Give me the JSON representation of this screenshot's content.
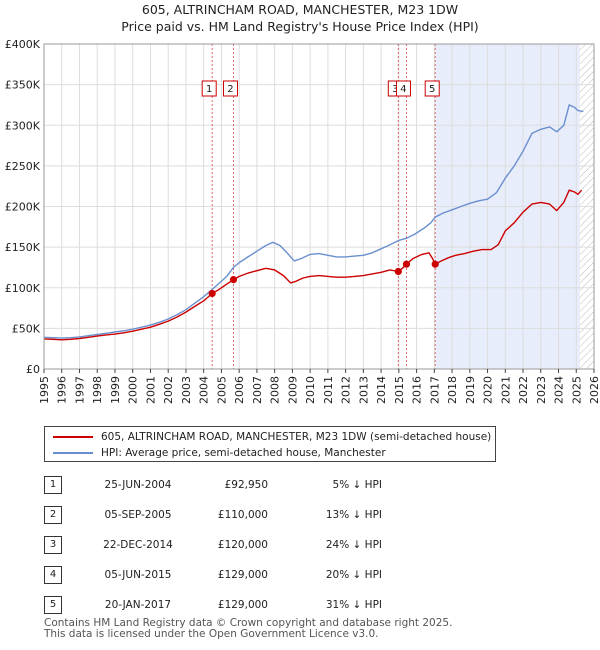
{
  "title_line1": "605, ALTRINCHAM ROAD, MANCHESTER, M23 1DW",
  "title_line2": "Price paid vs. HM Land Registry's House Price Index (HPI)",
  "chart_data": {
    "type": "line",
    "x_ticks": [
      "1995",
      "1996",
      "1997",
      "1998",
      "1999",
      "2000",
      "2001",
      "2002",
      "2003",
      "2004",
      "2005",
      "2006",
      "2007",
      "2008",
      "2009",
      "2010",
      "2011",
      "2012",
      "2013",
      "2014",
      "2015",
      "2016",
      "2017",
      "2018",
      "2019",
      "2020",
      "2021",
      "2022",
      "2023",
      "2024",
      "2025",
      "2026"
    ],
    "y_ticks": [
      "£0",
      "£50K",
      "£100K",
      "£150K",
      "£200K",
      "£250K",
      "£300K",
      "£350K",
      "£400K"
    ],
    "xlim": [
      1995,
      2026
    ],
    "ylim": [
      0,
      400000
    ],
    "series": [
      {
        "name": "605, ALTRINCHAM ROAD, MANCHESTER, M23 1DW (semi-detached house)",
        "color": "#cc0000",
        "points": [
          [
            1995.0,
            37000
          ],
          [
            1995.5,
            36500
          ],
          [
            1996.0,
            36000
          ],
          [
            1996.5,
            36500
          ],
          [
            1997.0,
            37500
          ],
          [
            1997.5,
            39000
          ],
          [
            1998.0,
            40500
          ],
          [
            1998.5,
            42000
          ],
          [
            1999.0,
            43000
          ],
          [
            1999.5,
            44500
          ],
          [
            2000.0,
            46500
          ],
          [
            2000.5,
            49000
          ],
          [
            2001.0,
            51500
          ],
          [
            2001.5,
            55000
          ],
          [
            2002.0,
            59000
          ],
          [
            2002.5,
            64000
          ],
          [
            2003.0,
            70000
          ],
          [
            2003.5,
            77000
          ],
          [
            2004.0,
            84000
          ],
          [
            2004.48,
            92950
          ],
          [
            2004.8,
            97000
          ],
          [
            2005.2,
            103000
          ],
          [
            2005.68,
            110000
          ],
          [
            2006.0,
            114000
          ],
          [
            2006.5,
            118000
          ],
          [
            2007.0,
            121000
          ],
          [
            2007.5,
            124000
          ],
          [
            2008.0,
            122000
          ],
          [
            2008.5,
            115000
          ],
          [
            2008.9,
            106000
          ],
          [
            2009.2,
            108000
          ],
          [
            2009.6,
            112000
          ],
          [
            2010.0,
            114000
          ],
          [
            2010.5,
            115000
          ],
          [
            2011.0,
            114000
          ],
          [
            2011.5,
            113000
          ],
          [
            2012.0,
            113000
          ],
          [
            2012.5,
            114000
          ],
          [
            2013.0,
            115000
          ],
          [
            2013.5,
            117000
          ],
          [
            2014.0,
            119000
          ],
          [
            2014.5,
            122000
          ],
          [
            2014.97,
            120000
          ],
          [
            2015.2,
            124000
          ],
          [
            2015.43,
            129000
          ],
          [
            2015.8,
            136000
          ],
          [
            2016.3,
            141000
          ],
          [
            2016.7,
            143000
          ],
          [
            2016.9,
            136000
          ],
          [
            2017.05,
            129000
          ],
          [
            2017.4,
            133000
          ],
          [
            2017.8,
            137000
          ],
          [
            2018.2,
            140000
          ],
          [
            2018.7,
            142000
          ],
          [
            2019.2,
            145000
          ],
          [
            2019.7,
            147000
          ],
          [
            2020.2,
            147000
          ],
          [
            2020.6,
            153000
          ],
          [
            2021.0,
            170000
          ],
          [
            2021.5,
            180000
          ],
          [
            2022.0,
            193000
          ],
          [
            2022.5,
            203000
          ],
          [
            2023.0,
            205000
          ],
          [
            2023.5,
            203000
          ],
          [
            2023.9,
            195000
          ],
          [
            2024.3,
            205000
          ],
          [
            2024.6,
            220000
          ],
          [
            2024.9,
            218000
          ],
          [
            2025.1,
            215000
          ],
          [
            2025.3,
            220000
          ]
        ],
        "sales": [
          {
            "id": "1",
            "x": 2004.48,
            "y": 92950
          },
          {
            "id": "2",
            "x": 2005.68,
            "y": 110000
          },
          {
            "id": "3",
            "x": 2014.97,
            "y": 120000
          },
          {
            "id": "4",
            "x": 2015.43,
            "y": 129000
          },
          {
            "id": "5",
            "x": 2017.05,
            "y": 129000
          }
        ]
      },
      {
        "name": "HPI: Average price, semi-detached house, Manchester",
        "color": "#6a8fcf",
        "points": [
          [
            1995.0,
            39000
          ],
          [
            1995.5,
            38500
          ],
          [
            1996.0,
            38000
          ],
          [
            1996.5,
            38500
          ],
          [
            1997.0,
            39500
          ],
          [
            1997.5,
            41000
          ],
          [
            1998.0,
            42500
          ],
          [
            1998.5,
            44000
          ],
          [
            1999.0,
            45500
          ],
          [
            1999.5,
            47000
          ],
          [
            2000.0,
            49000
          ],
          [
            2000.5,
            51500
          ],
          [
            2001.0,
            54000
          ],
          [
            2001.5,
            57500
          ],
          [
            2002.0,
            61500
          ],
          [
            2002.5,
            67000
          ],
          [
            2003.0,
            73000
          ],
          [
            2003.5,
            81000
          ],
          [
            2004.0,
            89000
          ],
          [
            2004.48,
            98000
          ],
          [
            2004.9,
            106000
          ],
          [
            2005.3,
            114000
          ],
          [
            2005.68,
            125000
          ],
          [
            2006.0,
            131000
          ],
          [
            2006.5,
            138000
          ],
          [
            2007.0,
            145000
          ],
          [
            2007.5,
            152000
          ],
          [
            2007.9,
            156000
          ],
          [
            2008.3,
            152000
          ],
          [
            2008.7,
            143000
          ],
          [
            2009.1,
            133000
          ],
          [
            2009.5,
            136000
          ],
          [
            2010.0,
            141000
          ],
          [
            2010.5,
            142000
          ],
          [
            2011.0,
            140000
          ],
          [
            2011.5,
            138000
          ],
          [
            2012.0,
            138000
          ],
          [
            2012.5,
            139000
          ],
          [
            2013.0,
            140000
          ],
          [
            2013.5,
            143000
          ],
          [
            2014.0,
            148000
          ],
          [
            2014.5,
            153000
          ],
          [
            2014.97,
            158000
          ],
          [
            2015.43,
            161000
          ],
          [
            2015.9,
            166000
          ],
          [
            2016.4,
            173000
          ],
          [
            2016.8,
            180000
          ],
          [
            2017.05,
            187000
          ],
          [
            2017.5,
            192000
          ],
          [
            2018.0,
            196000
          ],
          [
            2018.5,
            200000
          ],
          [
            2019.0,
            204000
          ],
          [
            2019.5,
            207000
          ],
          [
            2020.0,
            209000
          ],
          [
            2020.5,
            217000
          ],
          [
            2021.0,
            235000
          ],
          [
            2021.5,
            250000
          ],
          [
            2022.0,
            268000
          ],
          [
            2022.5,
            290000
          ],
          [
            2023.0,
            295000
          ],
          [
            2023.5,
            298000
          ],
          [
            2023.9,
            292000
          ],
          [
            2024.3,
            300000
          ],
          [
            2024.6,
            325000
          ],
          [
            2024.9,
            322000
          ],
          [
            2025.1,
            318000
          ],
          [
            2025.4,
            317000
          ]
        ]
      }
    ],
    "annotations": [
      {
        "label": "1",
        "x": 2004.48
      },
      {
        "label": "2",
        "x": 2005.68
      },
      {
        "label": "3",
        "x": 2014.97
      },
      {
        "label": "4",
        "x": 2015.43
      },
      {
        "label": "5",
        "x": 2017.05
      }
    ],
    "shaded_region": {
      "x_from": 2017.05,
      "x_to": 2025.2
    },
    "hatched_region": {
      "x_from": 2025.2,
      "x_to": 2026
    },
    "grid": true,
    "legend_position": "below"
  },
  "legend": [
    {
      "label": "605, ALTRINCHAM ROAD, MANCHESTER, M23 1DW (semi-detached house)",
      "color": "#cc0000"
    },
    {
      "label": "HPI: Average price, semi-detached house, Manchester",
      "color": "#6a8fcf"
    }
  ],
  "sales_table": [
    {
      "num": "1",
      "date": "25-JUN-2004",
      "price": "£92,950",
      "hpi": "5% ↓ HPI"
    },
    {
      "num": "2",
      "date": "05-SEP-2005",
      "price": "£110,000",
      "hpi": "13% ↓ HPI"
    },
    {
      "num": "3",
      "date": "22-DEC-2014",
      "price": "£120,000",
      "hpi": "24% ↓ HPI"
    },
    {
      "num": "4",
      "date": "05-JUN-2015",
      "price": "£129,000",
      "hpi": "20% ↓ HPI"
    },
    {
      "num": "5",
      "date": "20-JAN-2017",
      "price": "£129,000",
      "hpi": "31% ↓ HPI"
    }
  ],
  "footer_line1": "Contains HM Land Registry data © Crown copyright and database right 2025.",
  "footer_line2": "This data is licensed under the Open Government Licence v3.0."
}
